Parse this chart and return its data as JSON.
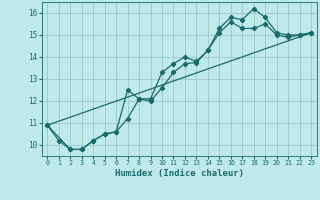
{
  "xlabel": "Humidex (Indice chaleur)",
  "bg_color": "#c0eaea",
  "line_color": "#1a6b6b",
  "grid_color": "#a0cccc",
  "xlim": [
    -0.5,
    23.5
  ],
  "ylim": [
    9.5,
    16.5
  ],
  "xticks": [
    0,
    1,
    2,
    3,
    4,
    5,
    6,
    7,
    8,
    9,
    10,
    11,
    12,
    13,
    14,
    15,
    16,
    17,
    18,
    19,
    20,
    21,
    22,
    23
  ],
  "yticks": [
    10,
    11,
    12,
    13,
    14,
    15,
    16
  ],
  "series1_x": [
    0,
    1,
    2,
    3,
    4,
    5,
    6,
    7,
    8,
    9,
    10,
    11,
    12,
    13,
    14,
    15,
    16,
    17,
    18,
    19,
    20,
    21,
    22,
    23
  ],
  "series1_y": [
    10.9,
    10.2,
    9.8,
    9.8,
    10.2,
    10.5,
    10.6,
    12.5,
    12.1,
    12.1,
    13.3,
    13.7,
    14.0,
    13.8,
    14.3,
    15.3,
    15.8,
    15.7,
    16.2,
    15.8,
    15.1,
    15.0,
    15.0,
    15.1
  ],
  "series2_x": [
    0,
    2,
    3,
    4,
    5,
    6,
    7,
    8,
    9,
    10,
    11,
    12,
    13,
    14,
    15,
    16,
    17,
    18,
    19,
    20,
    21,
    22,
    23
  ],
  "series2_y": [
    10.9,
    9.8,
    9.8,
    10.2,
    10.5,
    10.6,
    11.2,
    12.1,
    12.0,
    12.6,
    13.3,
    13.7,
    13.75,
    14.3,
    15.1,
    15.6,
    15.3,
    15.3,
    15.5,
    15.0,
    14.9,
    15.0,
    15.1
  ],
  "series3_x": [
    0,
    23
  ],
  "series3_y": [
    10.9,
    15.1
  ],
  "markersize": 2.2,
  "linewidth": 0.9
}
